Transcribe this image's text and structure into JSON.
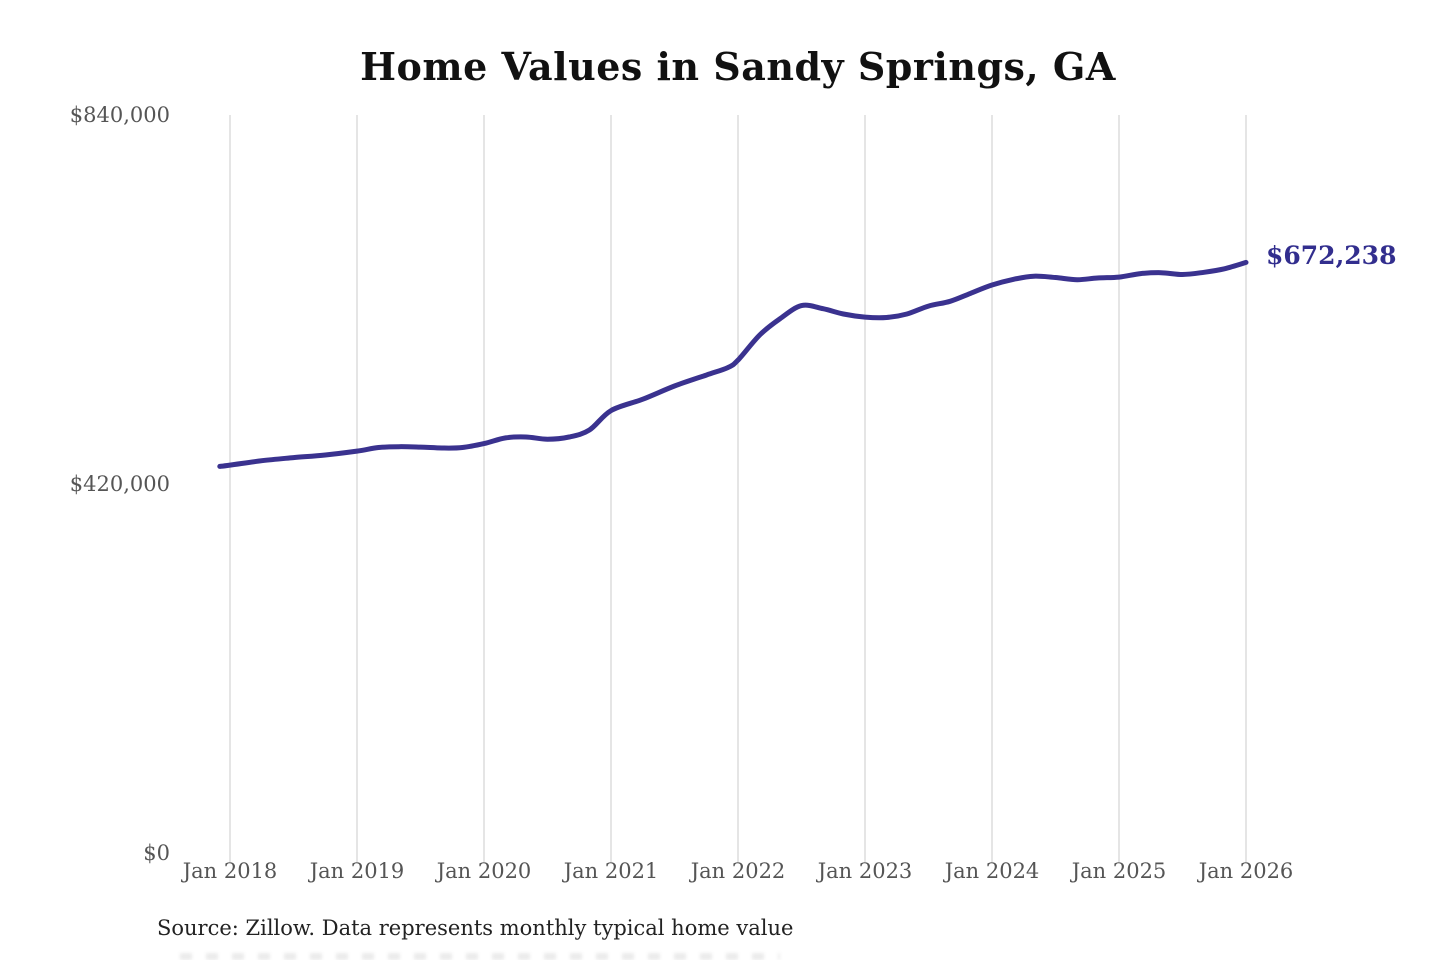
{
  "header": {
    "title": "Home Values in Sandy Springs, GA"
  },
  "chart_data": {
    "type": "line",
    "title": "Home Values in Sandy Springs, GA",
    "xlabel": "",
    "ylabel": "",
    "xlim": [
      2017.92,
      2026.0
    ],
    "ylim": [
      0,
      840000
    ],
    "grid": "vertical-only",
    "legend": "none",
    "x_ticks": [
      "Jan 2018",
      "Jan 2019",
      "Jan 2020",
      "Jan 2021",
      "Jan 2022",
      "Jan 2023",
      "Jan 2024",
      "Jan 2025",
      "Jan 2026"
    ],
    "y_ticks": [
      {
        "label": "$840,000",
        "value": 840000
      },
      {
        "label": "$420,000",
        "value": 420000
      },
      {
        "label": "$0",
        "value": 0
      }
    ],
    "series": [
      {
        "name": "Monthly typical home value",
        "points": [
          [
            2017.92,
            440000
          ],
          [
            2018.0,
            441500
          ],
          [
            2018.25,
            446500
          ],
          [
            2018.5,
            450000
          ],
          [
            2018.75,
            453000
          ],
          [
            2019.0,
            457500
          ],
          [
            2019.17,
            461500
          ],
          [
            2019.33,
            462500
          ],
          [
            2019.5,
            462000
          ],
          [
            2019.67,
            461000
          ],
          [
            2019.83,
            461500
          ],
          [
            2020.0,
            466000
          ],
          [
            2020.17,
            472500
          ],
          [
            2020.33,
            473500
          ],
          [
            2020.5,
            471000
          ],
          [
            2020.67,
            473500
          ],
          [
            2020.83,
            481500
          ],
          [
            2021.0,
            503500
          ],
          [
            2021.25,
            516500
          ],
          [
            2021.5,
            531500
          ],
          [
            2021.75,
            544000
          ],
          [
            2021.92,
            552500
          ],
          [
            2022.0,
            561000
          ],
          [
            2022.17,
            589500
          ],
          [
            2022.33,
            608000
          ],
          [
            2022.5,
            623000
          ],
          [
            2022.67,
            619500
          ],
          [
            2022.83,
            613500
          ],
          [
            2023.0,
            610000
          ],
          [
            2023.17,
            609500
          ],
          [
            2023.33,
            613500
          ],
          [
            2023.5,
            622500
          ],
          [
            2023.67,
            628000
          ],
          [
            2023.83,
            637000
          ],
          [
            2024.0,
            646500
          ],
          [
            2024.17,
            653000
          ],
          [
            2024.33,
            656500
          ],
          [
            2024.5,
            655000
          ],
          [
            2024.67,
            652500
          ],
          [
            2024.83,
            654500
          ],
          [
            2025.0,
            655500
          ],
          [
            2025.17,
            659500
          ],
          [
            2025.33,
            660500
          ],
          [
            2025.5,
            658500
          ],
          [
            2025.67,
            661000
          ],
          [
            2025.83,
            665000
          ],
          [
            2026.0,
            672238
          ]
        ]
      }
    ],
    "end_label": "$672,238",
    "last_value": 672238,
    "source": "Source: Zillow. Data represents monthly typical home value",
    "colors": {
      "line": "#3a328f",
      "end_label": "#322e8e",
      "grid": "#cbcbcb",
      "tick_text": "#555555",
      "title_text": "#111111",
      "source_text": "#222222"
    }
  }
}
